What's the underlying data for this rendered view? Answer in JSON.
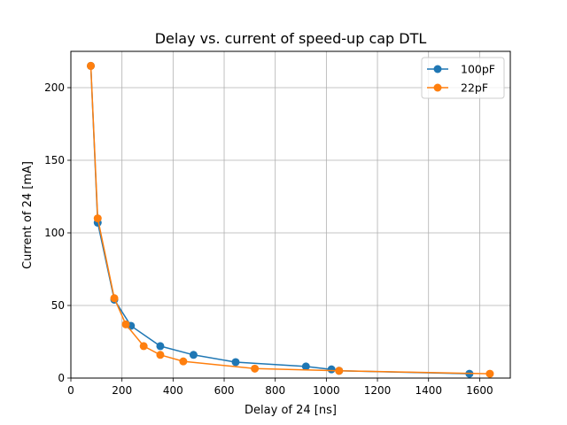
{
  "chart_data": {
    "type": "line",
    "title": "Delay vs. current of speed-up cap DTL",
    "xlabel": "Delay of 24 [ns]",
    "ylabel": "Current of 24 [mA]",
    "xlim": [
      0,
      1720
    ],
    "ylim": [
      0,
      225
    ],
    "xticks": [
      0,
      200,
      400,
      600,
      800,
      1000,
      1200,
      1400,
      1600
    ],
    "yticks": [
      0,
      50,
      100,
      150,
      200
    ],
    "grid": true,
    "legend_position": "top-right",
    "series": [
      {
        "name": "100pF",
        "color": "#1f77b4",
        "x": [
          78,
          105,
          170,
          235,
          350,
          480,
          645,
          920,
          1020,
          1050,
          1560
        ],
        "y": [
          215,
          107,
          54,
          36,
          22,
          16,
          11,
          8,
          6,
          5,
          3
        ]
      },
      {
        "name": "22pF",
        "color": "#ff7f0e",
        "x": [
          78,
          105,
          170,
          215,
          285,
          350,
          440,
          720,
          1050,
          1640
        ],
        "y": [
          215,
          110,
          55,
          37,
          22,
          16,
          11.5,
          6.5,
          5,
          3
        ]
      }
    ]
  }
}
